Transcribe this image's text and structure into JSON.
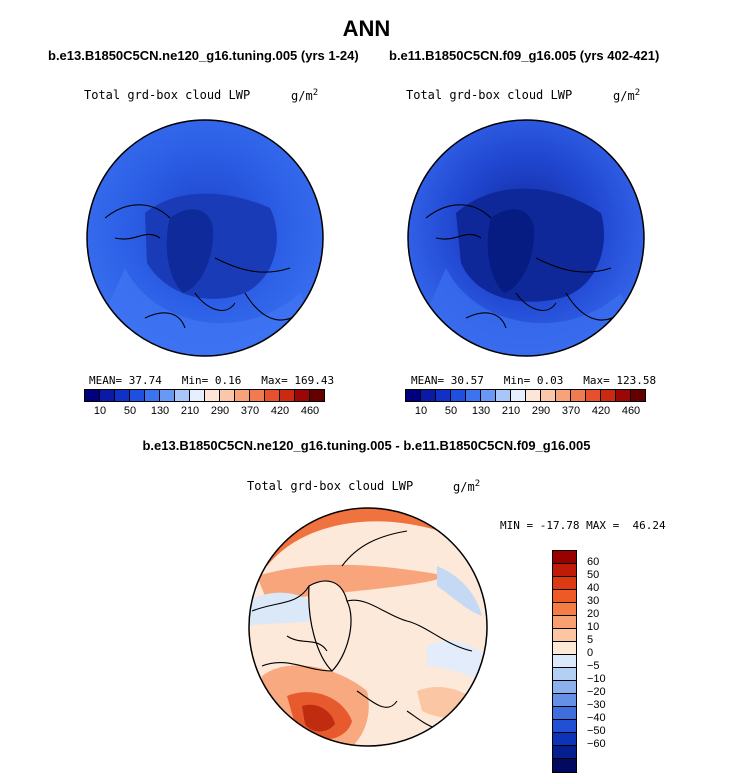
{
  "main_title": "ANN",
  "panel_left": {
    "case": "b.e13.B1850C5CN.ne120_g16.tuning.005 (yrs 1-24)",
    "variable": "Total grd-box cloud LWP",
    "units": "g/m",
    "units_exp": "2",
    "mean_label": "MEAN=",
    "mean": "37.74",
    "min_label": "Min=",
    "min": "0.16",
    "max_label": "Max=",
    "max": "169.43"
  },
  "panel_right": {
    "case": "b.e11.B1850C5CN.f09_g16.005 (yrs 402-421)",
    "variable": "Total grd-box cloud LWP",
    "units": "g/m",
    "units_exp": "2",
    "mean_label": "MEAN=",
    "mean": "30.57",
    "min_label": "Min=",
    "min": "0.03",
    "max_label": "Max=",
    "max": "123.58"
  },
  "seq_colorbar": {
    "colors": [
      "#00007f",
      "#0a1aa6",
      "#1030c6",
      "#1f4fe0",
      "#3c73ef",
      "#6a98f5",
      "#a9c6fa",
      "#e6efff",
      "#fde5d8",
      "#fbc7aa",
      "#f8a27b",
      "#f27a50",
      "#e6502c",
      "#cc2a10",
      "#9c0606",
      "#650000"
    ],
    "labels": [
      "10",
      "50",
      "130",
      "210",
      "290",
      "370",
      "420",
      "460"
    ]
  },
  "diff_panel": {
    "title": "b.e13.B1850C5CN.ne120_g16.tuning.005 - b.e11.B1850C5CN.f09_g16.005",
    "variable": "Total grd-box cloud LWP",
    "units": "g/m",
    "units_exp": "2",
    "min_label": "MIN =",
    "min": "-17.78",
    "max_label": "MAX =",
    "max": "46.24"
  },
  "diff_colorbar": {
    "colors_top_to_bottom": [
      "#990000",
      "#c01a08",
      "#de3a12",
      "#ee5a25",
      "#f57c45",
      "#f9a072",
      "#fcc6a2",
      "#fee8d6",
      "#dce9f9",
      "#b3cff3",
      "#8bb0ec",
      "#6490e6",
      "#3f6fde",
      "#2150d4",
      "#0d34b8",
      "#071f8e",
      "#020a5f"
    ],
    "labels": [
      "60",
      "50",
      "40",
      "30",
      "20",
      "10",
      "5",
      "0",
      "−5",
      "−10",
      "−20",
      "−30",
      "−40",
      "−50",
      "−60"
    ]
  }
}
